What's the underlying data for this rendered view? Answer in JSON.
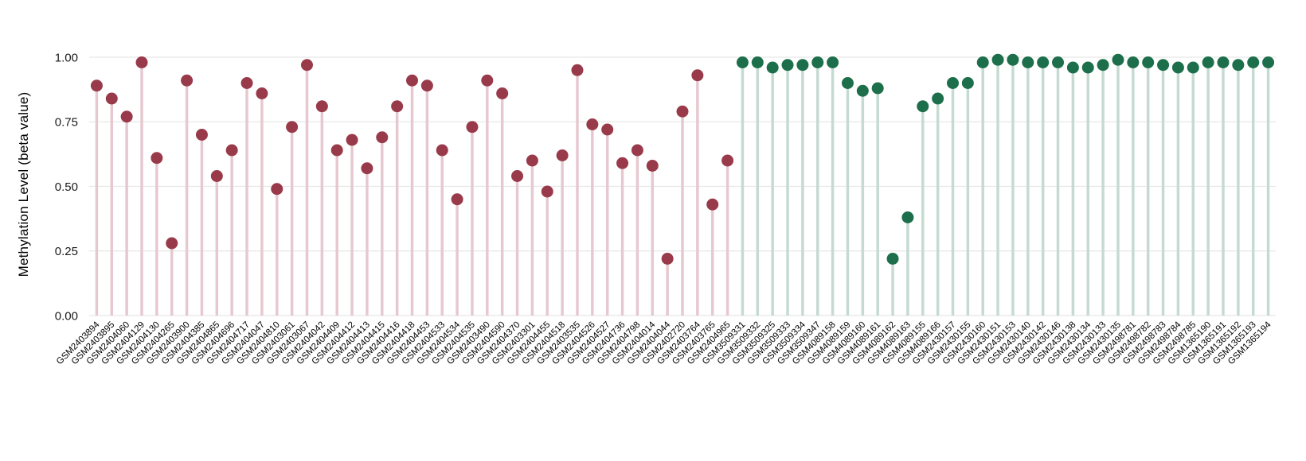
{
  "chart_data": {
    "type": "scatter",
    "variant": "lollipop",
    "title": "",
    "xlabel": "",
    "ylabel": "Methylation Level (beta value)",
    "ylim": [
      0,
      1.0
    ],
    "grid": true,
    "legend_position": "none",
    "yticks": [
      0,
      0.25,
      0.5,
      0.75,
      1.0
    ],
    "ytick_labels": [
      "0.00",
      "0.25",
      "0.50",
      "0.75",
      "1.00"
    ],
    "colors": {
      "group_1_point": "#993a4a",
      "group_1_stem": "#e6c9d0",
      "group_2_point": "#1d6f4b",
      "group_2_stem": "#c5dbd2",
      "gridline": "#e7e7e7",
      "tick_text": "#1a1a1a",
      "x_label_text": "#000000"
    },
    "series": [
      {
        "name": "group_1",
        "point_color": "#993a4a",
        "stem_color": "#e6c9d0",
        "points": [
          [
            "GSM2403894",
            0.89
          ],
          [
            "GSM2403895",
            0.84
          ],
          [
            "GSM2404060",
            0.77
          ],
          [
            "GSM2404129",
            0.98
          ],
          [
            "GSM2404130",
            0.61
          ],
          [
            "GSM2404265",
            0.28
          ],
          [
            "GSM2403900",
            0.91
          ],
          [
            "GSM2404385",
            0.7
          ],
          [
            "GSM2404865",
            0.54
          ],
          [
            "GSM2404696",
            0.64
          ],
          [
            "GSM2404717",
            0.9
          ],
          [
            "GSM2404047",
            0.86
          ],
          [
            "GSM2404810",
            0.49
          ],
          [
            "GSM2403061",
            0.73
          ],
          [
            "GSM2403067",
            0.97
          ],
          [
            "GSM2404042",
            0.81
          ],
          [
            "GSM2404409",
            0.64
          ],
          [
            "GSM2404412",
            0.68
          ],
          [
            "GSM2404413",
            0.57
          ],
          [
            "GSM2404415",
            0.69
          ],
          [
            "GSM2404416",
            0.81
          ],
          [
            "GSM2404418",
            0.91
          ],
          [
            "GSM2404453",
            0.89
          ],
          [
            "GSM2404533",
            0.64
          ],
          [
            "GSM2404534",
            0.45
          ],
          [
            "GSM2404535",
            0.73
          ],
          [
            "GSM2403490",
            0.91
          ],
          [
            "GSM2404590",
            0.86
          ],
          [
            "GSM2404370",
            0.54
          ],
          [
            "GSM2403301",
            0.6
          ],
          [
            "GSM2404455",
            0.48
          ],
          [
            "GSM2404518",
            0.62
          ],
          [
            "GSM2403535",
            0.95
          ],
          [
            "GSM2404526",
            0.74
          ],
          [
            "GSM2404527",
            0.72
          ],
          [
            "GSM2404736",
            0.59
          ],
          [
            "GSM2404798",
            0.64
          ],
          [
            "GSM2404014",
            0.58
          ],
          [
            "GSM2404044",
            0.22
          ],
          [
            "GSM2402720",
            0.79
          ],
          [
            "GSM2403764",
            0.93
          ],
          [
            "GSM2403765",
            0.43
          ],
          [
            "GSM2404965",
            0.6
          ]
        ]
      },
      {
        "name": "group_2",
        "point_color": "#1d6f4b",
        "stem_color": "#c5dbd2",
        "points": [
          [
            "GSM3509331",
            0.98
          ],
          [
            "GSM3509332",
            0.98
          ],
          [
            "GSM3509325",
            0.96
          ],
          [
            "GSM3509333",
            0.97
          ],
          [
            "GSM3509334",
            0.97
          ],
          [
            "GSM3509347",
            0.98
          ],
          [
            "GSM4089158",
            0.98
          ],
          [
            "GSM4089159",
            0.9
          ],
          [
            "GSM4089160",
            0.87
          ],
          [
            "GSM4089161",
            0.88
          ],
          [
            "GSM4089162",
            0.22
          ],
          [
            "GSM4089163",
            0.38
          ],
          [
            "GSM4089155",
            0.81
          ],
          [
            "GSM4089166",
            0.84
          ],
          [
            "GSM2430157",
            0.9
          ],
          [
            "GSM2430155",
            0.9
          ],
          [
            "GSM2430160",
            0.98
          ],
          [
            "GSM2430151",
            0.99
          ],
          [
            "GSM2430153",
            0.99
          ],
          [
            "GSM2430140",
            0.98
          ],
          [
            "GSM2430142",
            0.98
          ],
          [
            "GSM2430146",
            0.98
          ],
          [
            "GSM2430138",
            0.96
          ],
          [
            "GSM2430134",
            0.96
          ],
          [
            "GSM2430133",
            0.97
          ],
          [
            "GSM2430135",
            0.99
          ],
          [
            "GSM2498781",
            0.98
          ],
          [
            "GSM2498782",
            0.98
          ],
          [
            "GSM2498783",
            0.97
          ],
          [
            "GSM2498784",
            0.96
          ],
          [
            "GSM2498785",
            0.96
          ],
          [
            "GSM1365190",
            0.98
          ],
          [
            "GSM1365191",
            0.98
          ],
          [
            "GSM1365192",
            0.97
          ],
          [
            "GSM1365193",
            0.98
          ],
          [
            "GSM1365194",
            0.98
          ]
        ]
      }
    ]
  }
}
